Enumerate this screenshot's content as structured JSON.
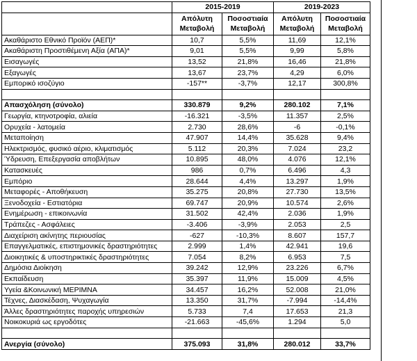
{
  "table": {
    "header": {
      "periods": [
        "2015-2019",
        "2019-2023"
      ],
      "columns": [
        "Απόλυτη Μεταβολή",
        "Ποσοστιαία Μεταβολή",
        "Απόλυτη Μεταβολή",
        "Ποσοστιαία Μεταβολή"
      ]
    },
    "sections": [
      {
        "rows": [
          [
            "Ακαθάριστο Εθνικό Προϊόν (ΑΕΠ)*",
            "10,7",
            "5,5%",
            "11,69",
            "12,1%"
          ],
          [
            "Ακαθάριστη Προστιθέμενη Αξία (ΑΠΑ)*",
            "9,01",
            "5,5%",
            "9,99",
            "5,8%"
          ],
          [
            "Εισαγωγές",
            "13,52",
            "21,8%",
            "16,46",
            "21,8%"
          ],
          [
            "Εξαγωγές",
            "13,67",
            "23,7%",
            "4,29",
            "6,0%"
          ],
          [
            "Εμπορικό ισοζύγιο",
            "-157**",
            "-3,7%",
            "12,17",
            "300,8%"
          ]
        ]
      },
      {
        "rows": [
          [
            "Απασχόληση (σύνολο)",
            "330.879",
            "9,2%",
            "280.102",
            "7,1%"
          ],
          [
            "Γεωργία, κτηνοτροφία, αλιεία",
            "-16.321",
            "-3,5%",
            "11.357",
            "2,5%"
          ],
          [
            "Ορυχεία - λατομεία",
            "2.730",
            "28,6%",
            "-6",
            "-0,1%"
          ],
          [
            "Μεταποίηση",
            "47.907",
            "14,4%",
            "35.628",
            "9,4%"
          ],
          [
            "Ηλεκτρισμός, φυσικό αέριο, κλιματισμός",
            "5.112",
            "20,3%",
            "7.024",
            "23,2"
          ],
          [
            "Ύδρευση, Επεξεργασία αποβλήτων",
            "10.895",
            "48,0%",
            "4.076",
            "12,1%"
          ],
          [
            "Κατασκευές",
            "986",
            "0,7%",
            "6.496",
            "4,3"
          ],
          [
            "Εμπόριο",
            "28.644",
            "4,4%",
            "13.297",
            "1,9%"
          ],
          [
            "Μεταφορές - Αποθήκευση",
            "35.275",
            "20,8%",
            "27.730",
            "13,5%"
          ],
          [
            "Ξενοδοχεία - Εστιατόρια",
            "69.747",
            "20,9%",
            "10.574",
            "2,6%"
          ],
          [
            "Ενημέρωση - επικοινωνία",
            "31.502",
            "42,4%",
            "2.036",
            "1,9%"
          ],
          [
            "Τράπεζες - Ασφάλειες",
            "-3.406",
            "-3,9%",
            "2.053",
            "2,5"
          ],
          [
            "Διαχείριση ακίνητης περιουσίας",
            "-627",
            "-10,3%",
            "8.607",
            "157,7"
          ],
          [
            "Επαγγελματικές, επιστημονικές δραστηριότητες",
            "2.999",
            "1,4%",
            "42.941",
            "19,6"
          ],
          [
            "Διοικητικές & υποστηρικτικές δραστηριότητες",
            "7.054",
            "8,2%",
            "6.953",
            "7,5"
          ],
          [
            "Δημόσια Διοίκηση",
            "39.242",
            "12,9%",
            "23.226",
            "6,7%"
          ],
          [
            "Εκπαίδευση",
            "35.397",
            "11,9%",
            "15.009",
            "4,5%"
          ],
          [
            "Υγεία &Κοινωνική ΜΕΡΙΜΝΑ",
            "34.457",
            "16,2%",
            "52.008",
            "21,0%"
          ],
          [
            "Τέχνες, Διασκέδαση, Ψυχαγωγία",
            "13.350",
            "31,7%",
            "-7.994",
            "-14,4%"
          ],
          [
            "Άλλες δραστηριότητες παροχής υπηρεσιών",
            "5.733",
            "7,4",
            "17.653",
            "21,3"
          ],
          [
            "Νοικοκυριά ως εργοδότες",
            "-21.663",
            "-45,6%",
            "1.294",
            "5,0"
          ]
        ]
      },
      {
        "rows": [
          [
            "Ανεργία (σύνολο)",
            "375.093",
            "31,8%",
            "280.012",
            "33,7%"
          ]
        ]
      }
    ]
  }
}
